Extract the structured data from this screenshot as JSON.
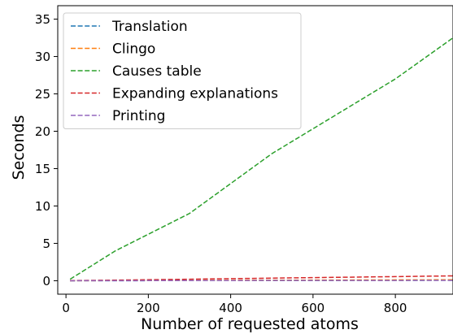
{
  "chart_data": {
    "type": "line",
    "xlabel": "Number of requested atoms",
    "ylabel": "Seconds",
    "xlim": [
      -20,
      940
    ],
    "ylim": [
      -1.8,
      36.8
    ],
    "xticks": [
      0,
      200,
      400,
      600,
      800
    ],
    "yticks": [
      0,
      5,
      10,
      15,
      20,
      25,
      30,
      35
    ],
    "grid": false,
    "legend_position": "top-left",
    "line_style": "dashed",
    "x": [
      10,
      120,
      300,
      500,
      800,
      940
    ],
    "series": [
      {
        "name": "Translation",
        "color": "#1f77b4",
        "values": [
          0.0,
          0.01,
          0.02,
          0.03,
          0.05,
          0.06
        ]
      },
      {
        "name": "Clingo",
        "color": "#ff7f0e",
        "values": [
          0.0,
          0.02,
          0.04,
          0.07,
          0.11,
          0.13
        ]
      },
      {
        "name": "Causes table",
        "color": "#2ca02c",
        "values": [
          0.2,
          4.0,
          9.0,
          17.0,
          27.0,
          32.5
        ]
      },
      {
        "name": "Expanding explanations",
        "color": "#d62728",
        "values": [
          0.02,
          0.08,
          0.2,
          0.35,
          0.55,
          0.65
        ]
      },
      {
        "name": "Printing",
        "color": "#9467bd",
        "values": [
          0.0,
          0.01,
          0.02,
          0.03,
          0.04,
          0.05
        ]
      }
    ]
  }
}
